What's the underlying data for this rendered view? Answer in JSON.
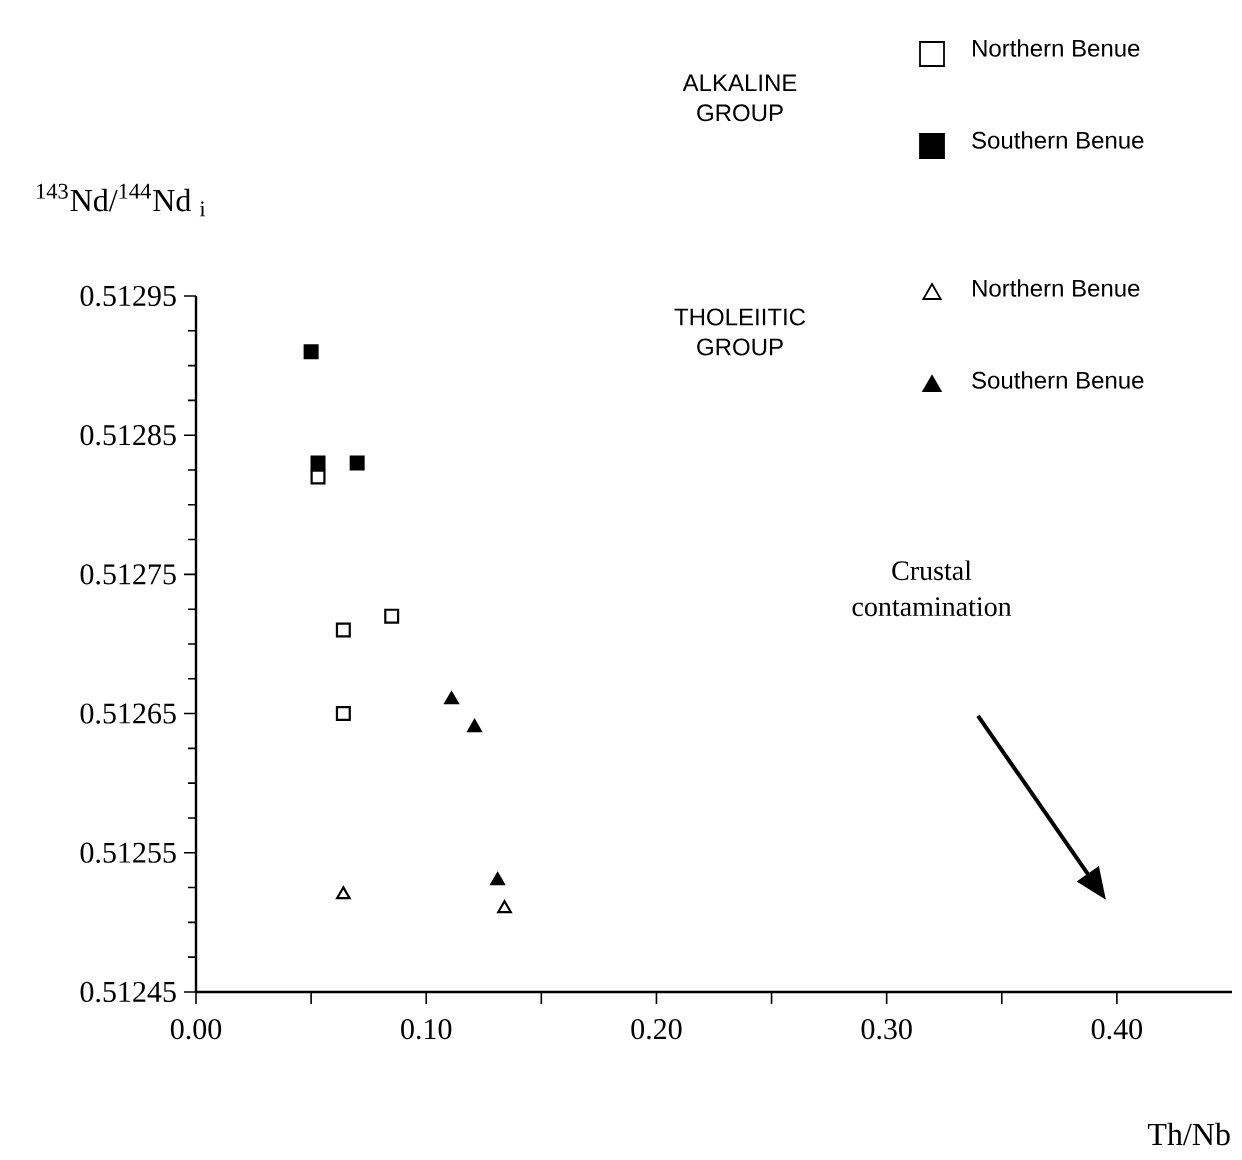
{
  "chart_data": {
    "type": "scatter",
    "xlabel": "Th/Nb",
    "ylabel": "$^{143}$Nd/$^{144}$Nd $_{i}$",
    "xlim": [
      0,
      0.45
    ],
    "ylim": [
      0.51245,
      0.51295
    ],
    "xticks": [
      {
        "value": 0,
        "label": "0.00"
      },
      {
        "value": 0.05,
        "label": null
      },
      {
        "value": 0.1,
        "label": "0.10"
      },
      {
        "value": 0.15,
        "label": null
      },
      {
        "value": 0.2,
        "label": "0.20"
      },
      {
        "value": 0.25,
        "label": null
      },
      {
        "value": 0.3,
        "label": "0.30"
      },
      {
        "value": 0.35,
        "label": null
      },
      {
        "value": 0.4,
        "label": "0.40"
      }
    ],
    "yticks": [
      0.51245,
      0.51255,
      0.51265,
      0.51275,
      0.51285,
      0.51295
    ],
    "legend": "top right",
    "grid": false,
    "annotations": [
      "ALKALINE GROUP",
      "THOLEIITIC GROUP",
      "Crustal contamination"
    ],
    "series": [
      {
        "name": "Northern Benue",
        "color": "#ffffff",
        "marker": "square",
        "x": [
          0.053,
          0.064,
          0.085,
          0.064
        ],
        "values": [
          0.51282,
          0.51271,
          0.51272,
          0.51265
        ]
      },
      {
        "name": "Southern Benue",
        "color": "#000000",
        "marker": "square",
        "x": [
          0.05,
          0.053,
          0.07
        ],
        "values": [
          0.51291,
          0.51283,
          0.51283
        ]
      },
      {
        "name": "Northern Benue",
        "color": "#ffffff",
        "marker": "triangle",
        "x": [
          0.064,
          0.134
        ],
        "values": [
          0.51252,
          0.51251
        ]
      },
      {
        "name": "Southern Benue",
        "color": "#000000",
        "marker": "triangle",
        "x": [
          0.111,
          0.121,
          0.131
        ],
        "values": [
          0.51266,
          0.51264,
          0.51253
        ]
      }
    ]
  }
}
